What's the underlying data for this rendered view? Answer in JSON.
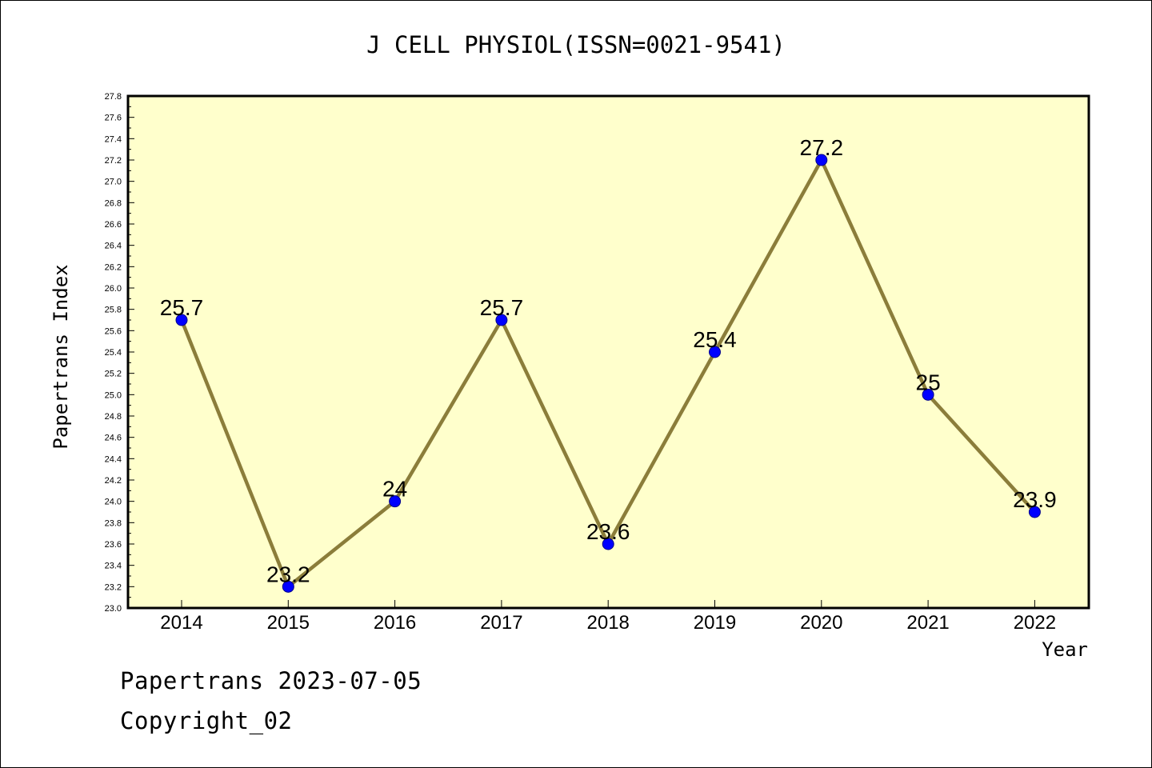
{
  "chart_data": {
    "type": "line",
    "title": "J CELL PHYSIOL(ISSN=0021-9541)",
    "xlabel": "Year",
    "ylabel": "Papertrans Index",
    "categories": [
      "2014",
      "2015",
      "2016",
      "2017",
      "2018",
      "2019",
      "2020",
      "2021",
      "2022"
    ],
    "series": [
      {
        "values": [
          25.7,
          23.2,
          24.0,
          25.7,
          23.6,
          25.4,
          27.2,
          25.0,
          23.9
        ],
        "labels": [
          "25.7",
          "23.2",
          "24",
          "25.7",
          "23.6",
          "25.4",
          "27.2",
          "25",
          "23.9"
        ]
      }
    ],
    "ylim": [
      23.0,
      27.8
    ],
    "ytick_step": 0.2,
    "grid": false,
    "colors": {
      "plot_background": "#ffffcc",
      "line": "#8b7d3a",
      "marker": "#0000ff"
    }
  },
  "footer": {
    "line1": "Papertrans 2023-07-05",
    "line2": "Copyright_02"
  }
}
